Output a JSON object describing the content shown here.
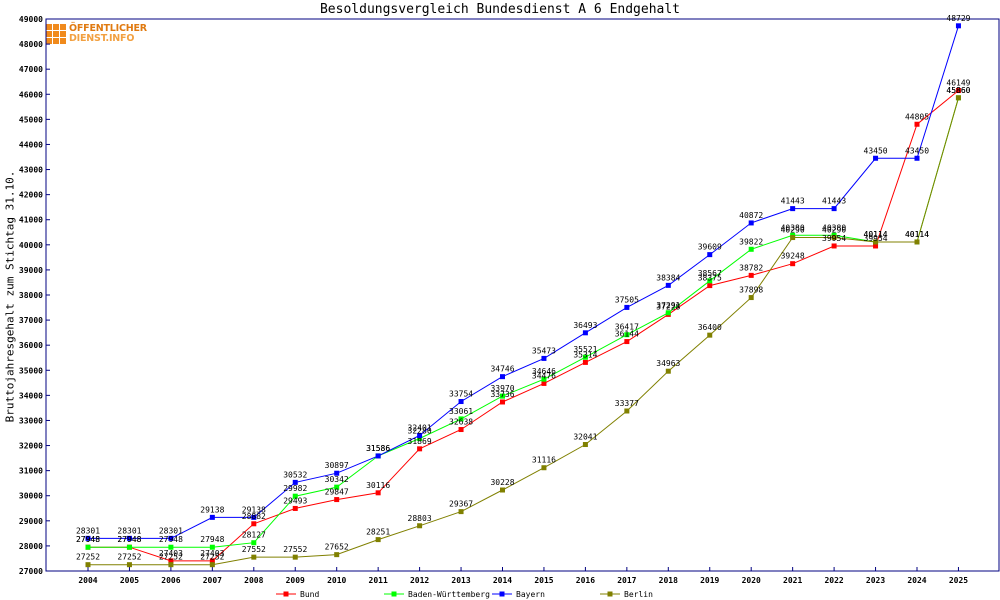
{
  "logo": {
    "line1": "ÖFFENTLICHER",
    "line2": "DIENST.INFO",
    "icon": "grid-logo-icon"
  },
  "chart_data": {
    "type": "line",
    "title": "Besoldungsvergleich Bundesdienst A 6 Endgehalt",
    "xlabel": "",
    "ylabel": "Bruttojahresgehalt zum Stichtag 31.10.",
    "x": [
      2004,
      2005,
      2006,
      2007,
      2008,
      2009,
      2010,
      2011,
      2012,
      2013,
      2014,
      2015,
      2016,
      2017,
      2018,
      2019,
      2020,
      2021,
      2022,
      2023,
      2024,
      2025
    ],
    "ylim": [
      27000,
      49000
    ],
    "yticks": [
      27000,
      28000,
      29000,
      30000,
      31000,
      32000,
      33000,
      34000,
      35000,
      36000,
      37000,
      38000,
      39000,
      40000,
      41000,
      42000,
      43000,
      44000,
      45000,
      46000,
      47000,
      48000,
      49000
    ],
    "grid": false,
    "legend": "bottom",
    "series": [
      {
        "name": "Bund",
        "color": "#ff0000",
        "values": [
          27948,
          27948,
          27403,
          27403,
          28882,
          29493,
          29847,
          30116,
          31869,
          32638,
          33736,
          34476,
          35314,
          36144,
          37228,
          38375,
          38782,
          39248,
          39954,
          39954,
          44805,
          46149
        ]
      },
      {
        "name": "Baden-Württemberg",
        "color": "#00ff00",
        "values": [
          27948,
          27948,
          27948,
          27948,
          28127,
          29982,
          30342,
          31586,
          32280,
          33061,
          33970,
          34646,
          35521,
          36417,
          37291,
          38567,
          39822,
          40380,
          40380,
          40114,
          40114,
          45860
        ]
      },
      {
        "name": "Bayern",
        "color": "#0000ff",
        "values": [
          28301,
          28301,
          28301,
          29138,
          29138,
          30532,
          30897,
          31586,
          32401,
          33754,
          34746,
          35473,
          36493,
          37505,
          38384,
          39609,
          40872,
          41443,
          41443,
          43450,
          43450,
          48729
        ]
      },
      {
        "name": "Berlin",
        "color": "#808000",
        "values": [
          27252,
          27252,
          27252,
          27252,
          27552,
          27552,
          27652,
          28251,
          28803,
          29367,
          30228,
          31116,
          32041,
          33377,
          34963,
          36400,
          37898,
          40290,
          40290,
          40114,
          40114,
          45860
        ]
      }
    ]
  }
}
